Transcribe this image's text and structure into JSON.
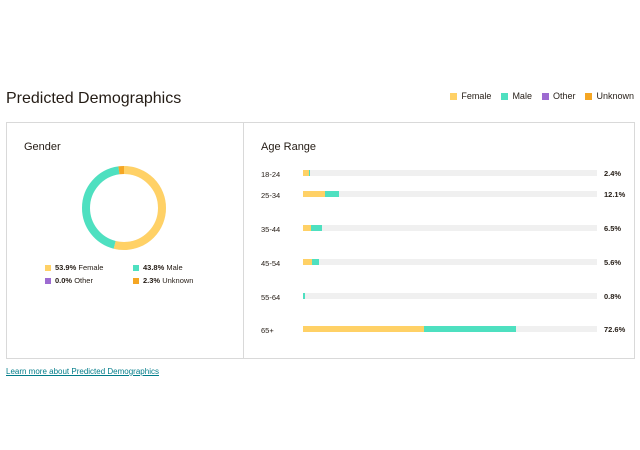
{
  "title": "Predicted Demographics",
  "colors": {
    "female": "#ffd166",
    "male": "#4ee0c0",
    "other": "#9d6bd1",
    "unknown": "#f5a623"
  },
  "legend": [
    {
      "label": "Female",
      "color": "#ffd166"
    },
    {
      "label": "Male",
      "color": "#4ee0c0"
    },
    {
      "label": "Other",
      "color": "#9d6bd1"
    },
    {
      "label": "Unknown",
      "color": "#f5a623"
    }
  ],
  "gender": {
    "title": "Gender",
    "items": [
      {
        "pct": "53.9%",
        "label": "Female",
        "value": 53.9,
        "color": "#ffd166"
      },
      {
        "pct": "43.8%",
        "label": "Male",
        "value": 43.8,
        "color": "#4ee0c0"
      },
      {
        "pct": "0.0%",
        "label": "Other",
        "value": 0.0,
        "color": "#9d6bd1"
      },
      {
        "pct": "2.3%",
        "label": "Unknown",
        "value": 2.3,
        "color": "#f5a623"
      }
    ]
  },
  "age": {
    "title": "Age Range",
    "rows": [
      {
        "label": "18-24",
        "pct": "2.4%",
        "female": 2.0,
        "male": 0.4
      },
      {
        "label": "25-34",
        "pct": "12.1%",
        "female": 7.5,
        "male": 4.6
      },
      {
        "label": "35-44",
        "pct": "6.5%",
        "female": 2.7,
        "male": 3.8
      },
      {
        "label": "45-54",
        "pct": "5.6%",
        "female": 3.2,
        "male": 2.4
      },
      {
        "label": "55-64",
        "pct": "0.8%",
        "female": 0.1,
        "male": 0.7
      },
      {
        "label": "65+",
        "pct": "72.6%",
        "female": 41.3,
        "male": 31.3
      }
    ]
  },
  "link": "Learn more about Predicted Demographics"
}
